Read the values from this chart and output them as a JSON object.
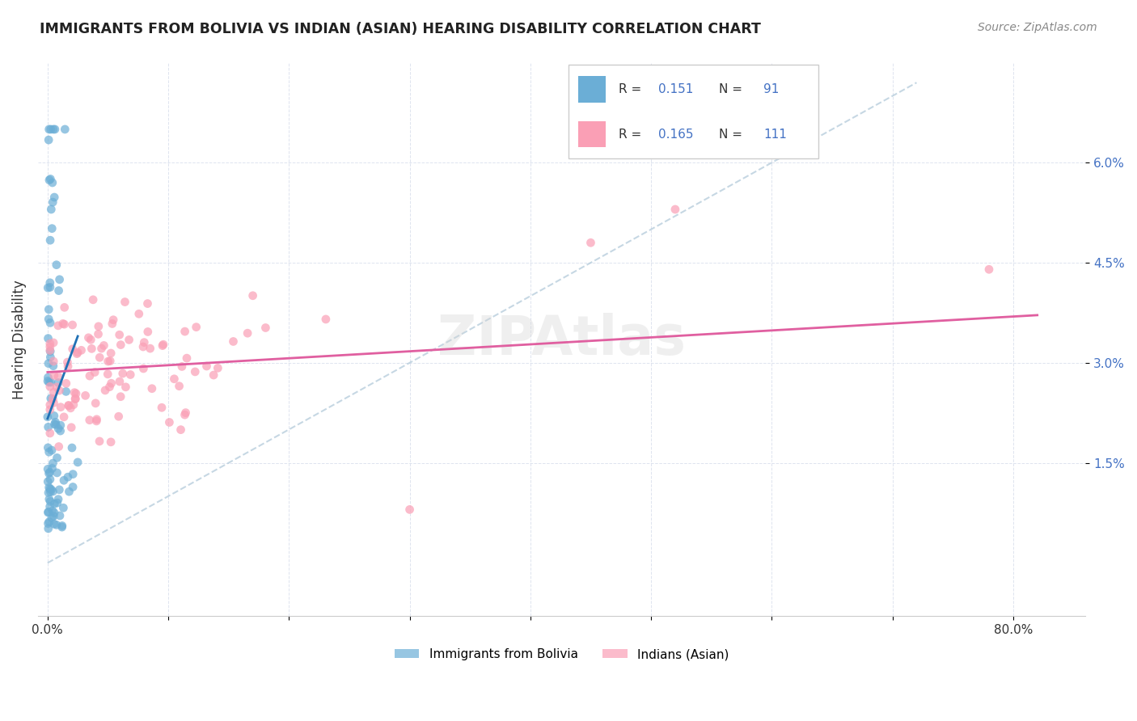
{
  "title": "IMMIGRANTS FROM BOLIVIA VS INDIAN (ASIAN) HEARING DISABILITY CORRELATION CHART",
  "source": "Source: ZipAtlas.com",
  "ylabel": "Hearing Disability",
  "yticks": [
    "1.5%",
    "3.0%",
    "4.5%",
    "6.0%"
  ],
  "ytick_vals": [
    0.015,
    0.03,
    0.045,
    0.06
  ],
  "legend_label1": "Immigrants from Bolivia",
  "legend_label2": "Indians (Asian)",
  "r1": 0.151,
  "n1": 91,
  "r2": 0.165,
  "n2": 111,
  "color_bolivia": "#6baed6",
  "color_indian": "#fa9fb5",
  "color_bolivia_line": "#2171b5",
  "color_indian_line": "#e05fa0",
  "color_dashed": "#aec7d8"
}
